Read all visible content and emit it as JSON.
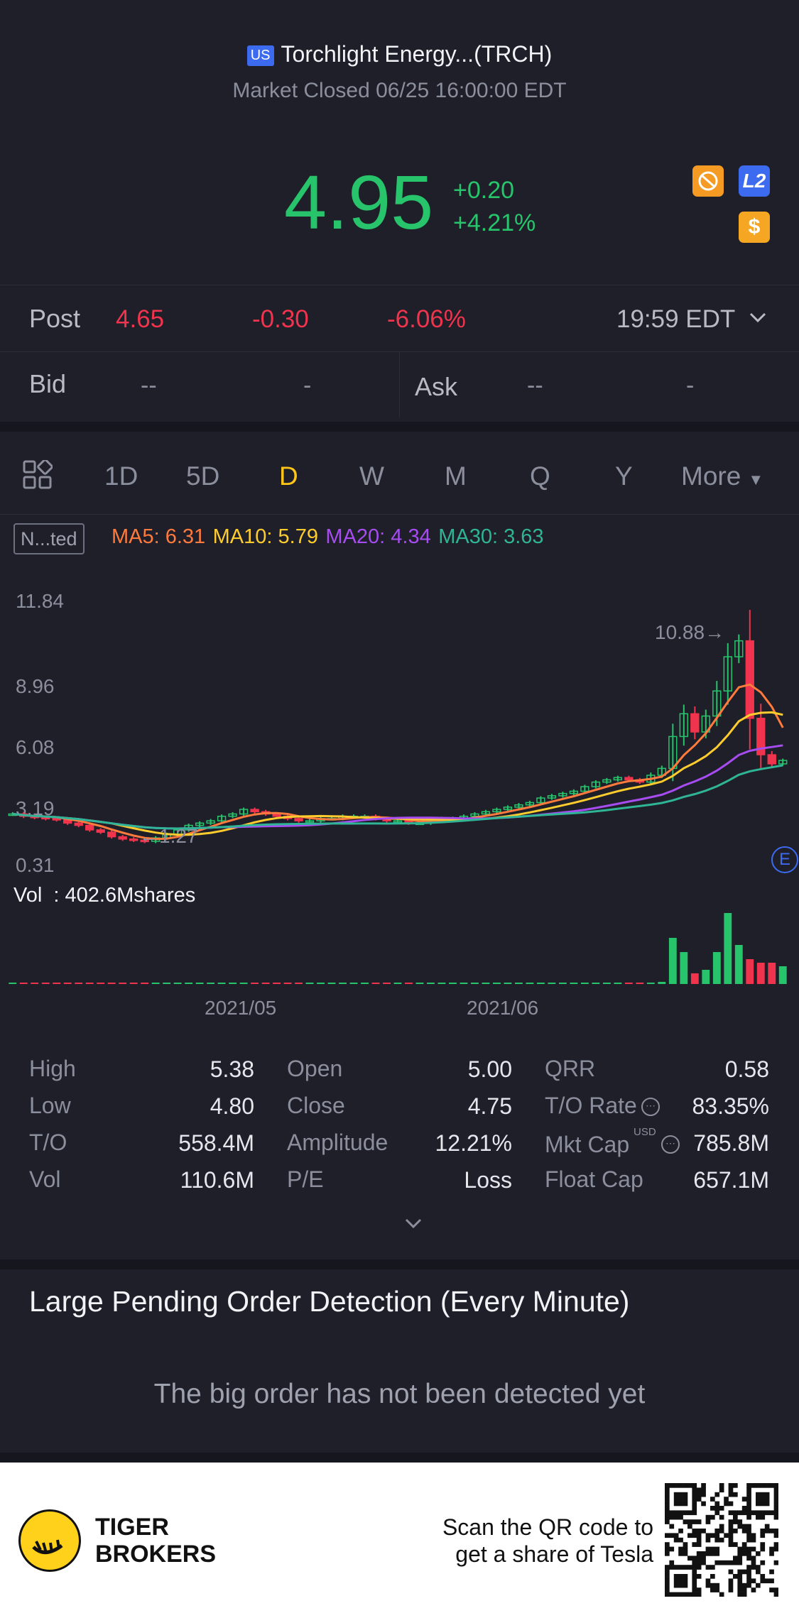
{
  "header": {
    "market_badge": "US",
    "title": "Torchlight Energy...(TRCH)",
    "status": "Market Closed 06/25 16:00:00 EDT"
  },
  "quote": {
    "price": "4.95",
    "change": "+0.20",
    "change_pct": "+4.21%",
    "badge_l2": "L2",
    "badge_dollar": "$"
  },
  "post": {
    "label": "Post",
    "price": "4.65",
    "change": "-0.30",
    "change_pct": "-6.06%",
    "time": "19:59 EDT"
  },
  "bidask": {
    "bid_label": "Bid",
    "bid_price": "--",
    "bid_size": "-",
    "ask_label": "Ask",
    "ask_price": "--",
    "ask_size": "-"
  },
  "tabs": {
    "items": [
      "1D",
      "5D",
      "D",
      "W",
      "M",
      "Q",
      "Y"
    ],
    "active": "D",
    "more": "More"
  },
  "indicators": {
    "adjust_label": "N...ted",
    "ma5": "MA5: 6.31",
    "ma10": "MA10: 5.79",
    "ma20": "MA20: 4.34",
    "ma30": "MA30: 3.63"
  },
  "axis": {
    "y_labels": [
      "11.84",
      "8.96",
      "6.08",
      "3.19",
      "0.31"
    ],
    "high_marker": "10.88→",
    "low_marker": "←1.27",
    "x_labels": [
      "2021/05",
      "2021/06"
    ],
    "earnings_marker": "E"
  },
  "volume": {
    "label": "Vol",
    "value": ": 402.6Mshares"
  },
  "stats": {
    "col1": [
      {
        "label": "High",
        "value": "5.38"
      },
      {
        "label": "Low",
        "value": "4.80"
      },
      {
        "label": "T/O",
        "value": "558.4M"
      },
      {
        "label": "Vol",
        "value": "110.6M"
      }
    ],
    "col2": [
      {
        "label": "Open",
        "value": "5.00"
      },
      {
        "label": "Close",
        "value": "4.75"
      },
      {
        "label": "Amplitude",
        "value": "12.21%"
      },
      {
        "label": "P/E",
        "value": "Loss"
      }
    ],
    "col3": [
      {
        "label": "QRR",
        "value": "0.58"
      },
      {
        "label": "T/O Rate",
        "value": "83.35%"
      },
      {
        "label": "Mkt Cap",
        "value": "785.8M"
      },
      {
        "label": "Float Cap",
        "value": "657.1M"
      }
    ],
    "mkt_cap_unit": "USD"
  },
  "pending": {
    "title": "Large Pending Order Detection (Every Minute)",
    "empty": "The big order has not been detected yet"
  },
  "footer": {
    "brand_line1": "TIGER",
    "brand_line2": "BROKERS",
    "promo_line1": "Scan the QR code to",
    "promo_line2": "get a share of Tesla"
  },
  "chart_data": {
    "type": "candlestick",
    "title": "",
    "x_ticks": [
      "2021/05",
      "2021/06"
    ],
    "ylim": [
      0.31,
      11.84
    ],
    "y_ticks": [
      11.84,
      8.96,
      6.08,
      3.19,
      0.31
    ],
    "period_high": 10.88,
    "period_low": 1.27,
    "moving_averages": [
      {
        "name": "MA5",
        "value": 6.31,
        "color": "#ff7a3d"
      },
      {
        "name": "MA10",
        "value": 5.79,
        "color": "#ffcc2e"
      },
      {
        "name": "MA20",
        "value": 4.34,
        "color": "#a64cf0"
      },
      {
        "name": "MA30",
        "value": 3.63,
        "color": "#2fb596"
      }
    ],
    "closes": [
      2.6,
      2.5,
      2.45,
      2.4,
      2.35,
      2.2,
      2.1,
      1.9,
      1.8,
      1.6,
      1.5,
      1.45,
      1.4,
      1.55,
      1.7,
      1.9,
      2.1,
      2.2,
      2.3,
      2.5,
      2.6,
      2.8,
      2.7,
      2.6,
      2.5,
      2.4,
      2.3,
      2.3,
      2.4,
      2.4,
      2.5,
      2.5,
      2.5,
      2.4,
      2.3,
      2.3,
      2.2,
      2.2,
      2.3,
      2.4,
      2.4,
      2.5,
      2.6,
      2.7,
      2.8,
      2.9,
      3.0,
      3.1,
      3.3,
      3.4,
      3.5,
      3.6,
      3.8,
      4.0,
      4.1,
      4.2,
      4.1,
      4.0,
      4.3,
      4.6,
      6.0,
      7.0,
      6.2,
      6.9,
      8.0,
      9.5,
      10.2,
      6.8,
      5.2,
      4.8,
      4.95
    ],
    "volume_colors_by_direction": {
      "up": "#27c46b",
      "down": "#f0344d"
    },
    "volumes_relative": [
      0.02,
      0.02,
      0.02,
      0.02,
      0.02,
      0.02,
      0.02,
      0.02,
      0.02,
      0.02,
      0.02,
      0.02,
      0.02,
      0.02,
      0.02,
      0.02,
      0.02,
      0.02,
      0.02,
      0.02,
      0.02,
      0.02,
      0.02,
      0.02,
      0.02,
      0.02,
      0.02,
      0.02,
      0.02,
      0.02,
      0.02,
      0.02,
      0.02,
      0.02,
      0.02,
      0.02,
      0.02,
      0.02,
      0.02,
      0.02,
      0.02,
      0.02,
      0.02,
      0.02,
      0.02,
      0.02,
      0.02,
      0.02,
      0.02,
      0.02,
      0.02,
      0.02,
      0.02,
      0.02,
      0.02,
      0.02,
      0.02,
      0.02,
      0.02,
      0.03,
      0.65,
      0.45,
      0.15,
      0.2,
      0.45,
      1.0,
      0.55,
      0.35,
      0.3,
      0.3,
      0.25
    ]
  }
}
